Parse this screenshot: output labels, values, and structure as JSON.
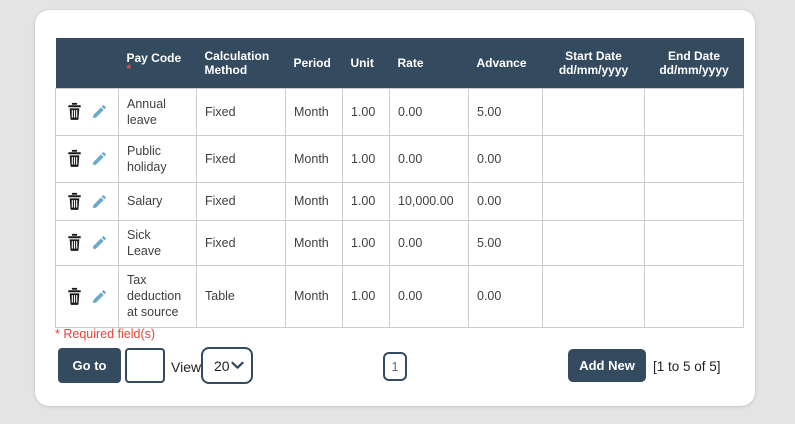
{
  "colors": {
    "header_bg": "#344a5e",
    "button_bg": "#344a5e",
    "required_red": "#e5453d",
    "pencil_blue": "#6ba9cb",
    "trash_black": "#1a1a1a",
    "border_gray": "#cbcbcb",
    "page_bg": "#e4e4e4"
  },
  "table": {
    "columns": [
      {
        "key": "actions",
        "label": ""
      },
      {
        "key": "pay_code",
        "label": "Pay Code",
        "required": "*"
      },
      {
        "key": "calculation_method",
        "label": "Calculation Method"
      },
      {
        "key": "period",
        "label": "Period"
      },
      {
        "key": "unit",
        "label": "Unit"
      },
      {
        "key": "rate",
        "label": "Rate"
      },
      {
        "key": "advance",
        "label": "Advance"
      },
      {
        "key": "start_date",
        "label": "Start Date",
        "sublabel": "dd/mm/yyyy",
        "center": true
      },
      {
        "key": "end_date",
        "label": "End Date",
        "sublabel": "dd/mm/yyyy",
        "center": true
      }
    ],
    "rows": [
      {
        "pay_code": "Annual leave",
        "calculation_method": "Fixed",
        "period": "Month",
        "unit": "1.00",
        "rate": "0.00",
        "advance": "5.00",
        "start_date": "",
        "end_date": ""
      },
      {
        "pay_code": "Public holiday",
        "calculation_method": "Fixed",
        "period": "Month",
        "unit": "1.00",
        "rate": "0.00",
        "advance": "0.00",
        "start_date": "",
        "end_date": ""
      },
      {
        "pay_code": "Salary",
        "calculation_method": "Fixed",
        "period": "Month",
        "unit": "1.00",
        "rate": "10,000.00",
        "advance": "0.00",
        "start_date": "",
        "end_date": ""
      },
      {
        "pay_code": "Sick Leave",
        "calculation_method": "Fixed",
        "period": "Month",
        "unit": "1.00",
        "rate": "0.00",
        "advance": "5.00",
        "start_date": "",
        "end_date": ""
      },
      {
        "pay_code": "Tax deduction at source",
        "calculation_method": "Table",
        "period": "Month",
        "unit": "1.00",
        "rate": "0.00",
        "advance": "0.00",
        "start_date": "",
        "end_date": ""
      }
    ]
  },
  "footer": {
    "required_note": "* Required field(s)",
    "goto_label": "Go to",
    "goto_input_value": "",
    "view_label": "View",
    "view_selected": "20",
    "page_number": "1",
    "add_new_label": "Add New",
    "range_text": "[1 to 5 of 5]"
  }
}
